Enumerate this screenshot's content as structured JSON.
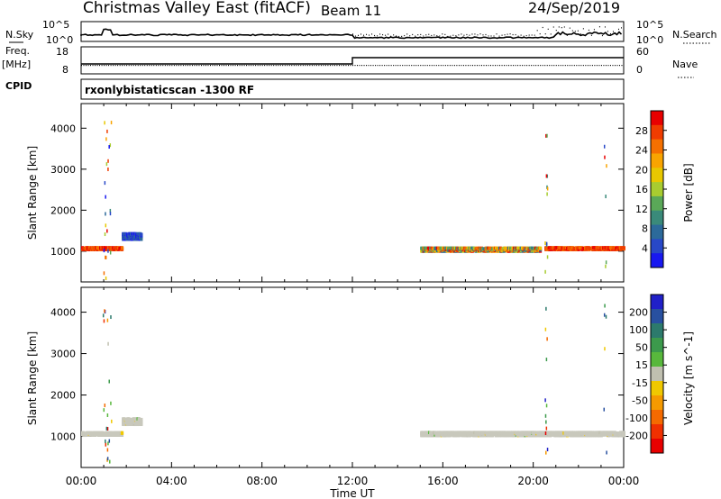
{
  "header": {
    "title": "Christmas Valley East (fitACF)",
    "beam": "Beam 11",
    "date": "24/Sep/2019"
  },
  "strip_panel": {
    "left_labels": [
      "N.Sky",
      "Freq.",
      "[MHz]",
      "CPID"
    ],
    "right_labels": [
      "N.Search",
      "Nave"
    ],
    "nsky_ticks": [
      "10^5",
      "10^0"
    ],
    "nsearch_ticks": [
      "10^5",
      "10^0"
    ],
    "freq_ticks": [
      "18",
      "8"
    ],
    "nave_ticks": [
      "60",
      "0"
    ],
    "cpid_text": "rxonlybistaticscan -1300 RF"
  },
  "chart_data": [
    {
      "type": "scatter",
      "title": "",
      "xlabel": "",
      "ylabel": "Slant Range [km]",
      "x_range_hours": [
        0,
        24
      ],
      "ylim": [
        250,
        4600
      ],
      "yticks": [
        1000,
        2000,
        3000,
        4000
      ],
      "colorbar": {
        "label": "Power [dB]",
        "ticks": [
          "28",
          "24",
          "20",
          "16",
          "12",
          "8",
          "4"
        ],
        "colors": [
          "#e80000",
          "#f03c00",
          "#f57000",
          "#f9a400",
          "#e8c800",
          "#a8cc30",
          "#5aa858",
          "#3a8a7a",
          "#2c6a9a",
          "#2848c8",
          "#1818f0"
        ]
      },
      "series": [
        {
          "x": [
            0.0,
            1.8
          ],
          "y": [
            1000,
            1050
          ],
          "level": "high"
        },
        {
          "x": [
            1.8,
            2.6
          ],
          "y": [
            1250,
            1400
          ],
          "level": "low"
        },
        {
          "x": [
            15.0,
            20.3
          ],
          "y": [
            960,
            1050
          ],
          "level": "mixed"
        },
        {
          "x": [
            20.5,
            24.0
          ],
          "y": [
            1000,
            1060
          ],
          "level": "high"
        }
      ]
    },
    {
      "type": "scatter",
      "title": "",
      "xlabel": "Time UT",
      "ylabel": "Slant Range [km]",
      "x_range_hours": [
        0,
        24
      ],
      "ylim": [
        250,
        4600
      ],
      "yticks": [
        1000,
        2000,
        3000,
        4000
      ],
      "xticks": [
        "00:00",
        "04:00",
        "08:00",
        "12:00",
        "16:00",
        "20:00",
        "00:00"
      ],
      "colorbar": {
        "label": "Velocity [m s^-1]",
        "ticks": [
          "200",
          "100",
          "50",
          "15",
          "-15",
          "-50",
          "-100",
          "-200"
        ],
        "colors": [
          "#2020c8",
          "#2850a0",
          "#2c7a6c",
          "#3c9a4c",
          "#58b83c",
          "#c0c0b0",
          "#f0c800",
          "#f59a00",
          "#f56a00",
          "#f03000",
          "#e80000"
        ]
      },
      "series": [
        {
          "x": [
            0.0,
            1.8
          ],
          "y": [
            990,
            1060
          ],
          "level": "ground"
        },
        {
          "x": [
            1.8,
            2.6
          ],
          "y": [
            1250,
            1400
          ],
          "level": "ground"
        },
        {
          "x": [
            15.0,
            24.0
          ],
          "y": [
            980,
            1060
          ],
          "level": "ground"
        }
      ]
    }
  ]
}
